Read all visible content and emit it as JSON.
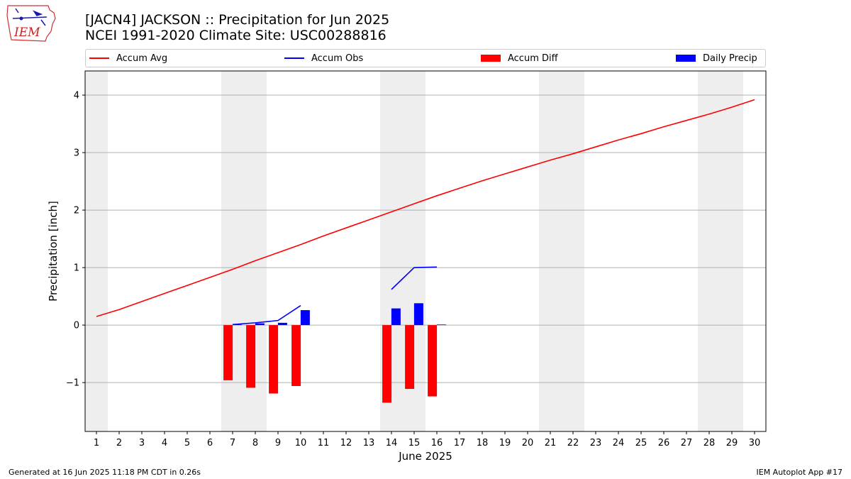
{
  "header": {
    "title_line1": "[JACN4] JACKSON :: Precipitation for Jun 2025",
    "title_line2": "NCEI 1991-2020 Climate Site: USC00288816"
  },
  "logo": {
    "text": "IEM",
    "icon": "iem-iowa-logo"
  },
  "footer": {
    "left": "Generated at 16 Jun 2025 11:18 PM CDT in 0.26s",
    "right": "IEM Autoplot App #17"
  },
  "legend": {
    "placement": "top",
    "items": [
      {
        "label": "Accum Avg",
        "kind": "line",
        "color": "#ff0000"
      },
      {
        "label": "Accum Obs",
        "kind": "line",
        "color": "#0000ff"
      },
      {
        "label": "Accum Diff",
        "kind": "box",
        "color": "#ff0000"
      },
      {
        "label": "Daily Precip",
        "kind": "box",
        "color": "#0000ff"
      }
    ]
  },
  "chart_data": {
    "type": "bar",
    "xlabel": "June 2025",
    "ylabel": "Precipitation [inch]",
    "xlim": [
      0.5,
      30.5
    ],
    "ylim": [
      -1.85,
      4.42
    ],
    "yticks": [
      -1,
      0,
      1,
      2,
      3,
      4
    ],
    "ytick_labels": [
      "−1",
      "0",
      "1",
      "2",
      "3",
      "4"
    ],
    "xticks": [
      1,
      2,
      3,
      4,
      5,
      6,
      7,
      8,
      9,
      10,
      11,
      12,
      13,
      14,
      15,
      16,
      17,
      18,
      19,
      20,
      21,
      22,
      23,
      24,
      25,
      26,
      27,
      28,
      29,
      30
    ],
    "grid": "y",
    "weekend_shading": [
      [
        0.5,
        1.5
      ],
      [
        6.5,
        8.5
      ],
      [
        13.5,
        15.5
      ],
      [
        20.5,
        22.5
      ],
      [
        27.5,
        29.5
      ]
    ],
    "shade_color": "#eeeeee",
    "series": [
      {
        "name": "Accum Avg",
        "type": "line",
        "color": "#ff0000",
        "x": [
          1,
          2,
          3,
          4,
          5,
          6,
          7,
          8,
          9,
          10,
          11,
          12,
          13,
          14,
          15,
          16,
          17,
          18,
          19,
          20,
          21,
          22,
          23,
          24,
          25,
          26,
          27,
          28,
          29,
          30
        ],
        "values": [
          0.15,
          0.27,
          0.41,
          0.55,
          0.69,
          0.83,
          0.97,
          1.12,
          1.26,
          1.4,
          1.55,
          1.69,
          1.83,
          1.97,
          2.11,
          2.25,
          2.38,
          2.51,
          2.63,
          2.75,
          2.87,
          2.98,
          3.1,
          3.22,
          3.33,
          3.45,
          3.56,
          3.67,
          3.79,
          3.92
        ]
      },
      {
        "name": "Accum Obs",
        "type": "line",
        "color": "#0000ff",
        "segments": [
          {
            "x": [
              7,
              8,
              9,
              10
            ],
            "values": [
              0.01,
              0.04,
              0.08,
              0.34
            ]
          },
          {
            "x": [
              14,
              15,
              16
            ],
            "values": [
              0.62,
              1.0,
              1.01
            ]
          }
        ]
      },
      {
        "name": "Accum Diff",
        "type": "bar",
        "color": "#ff0000",
        "offset": -0.2,
        "x": [
          7,
          8,
          9,
          10,
          14,
          15,
          16
        ],
        "values": [
          -0.96,
          -1.09,
          -1.19,
          -1.06,
          -1.35,
          -1.11,
          -1.24
        ]
      },
      {
        "name": "Daily Precip",
        "type": "bar",
        "color": "#0000ff",
        "offset": 0.2,
        "x": [
          7,
          8,
          9,
          10,
          14,
          15,
          16
        ],
        "values": [
          0.01,
          0.03,
          0.04,
          0.26,
          0.29,
          0.38,
          0.01
        ]
      }
    ]
  }
}
